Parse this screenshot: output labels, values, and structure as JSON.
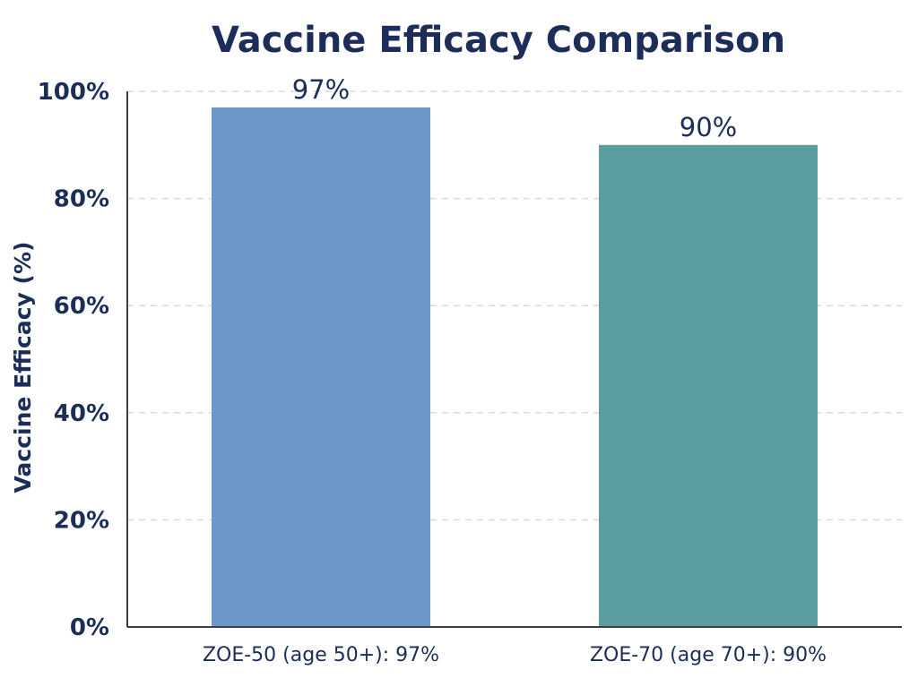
{
  "chart_data": {
    "type": "bar",
    "title": "Vaccine Efficacy Comparison",
    "xlabel": "",
    "ylabel": "Vaccine Efficacy (%)",
    "ylim": [
      0,
      100
    ],
    "yticks": [
      0,
      20,
      40,
      60,
      80,
      100
    ],
    "ytick_labels": [
      "0%",
      "20%",
      "40%",
      "60%",
      "80%",
      "100%"
    ],
    "categories": [
      "ZOE-50 (age 50+): 97%",
      "ZOE-70 (age 70+): 90%"
    ],
    "values": [
      97,
      90
    ],
    "data_labels": [
      "97%",
      "90%"
    ],
    "bar_colors": [
      "#6b98c8",
      "#5b9ea0"
    ],
    "grid": true,
    "legend": "none"
  }
}
